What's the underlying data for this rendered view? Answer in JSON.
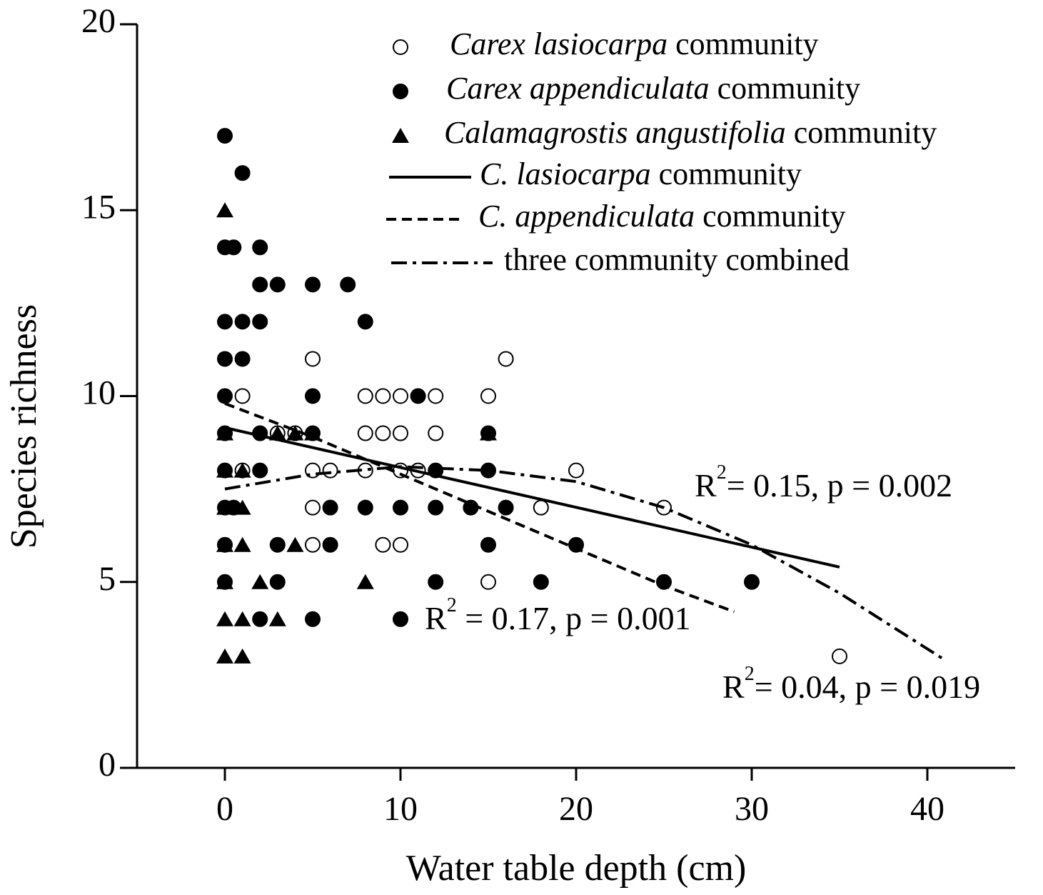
{
  "chart_data": {
    "type": "scatter",
    "x_label": "Water table depth (cm)",
    "y_label": "Species richness",
    "xlim": [
      -5,
      45
    ],
    "xticks": [
      0,
      10,
      20,
      30,
      40
    ],
    "ylim": [
      0,
      20
    ],
    "yticks": [
      0,
      5,
      10,
      15,
      20
    ],
    "series": [
      {
        "name": "Carex lasiocarpa community",
        "marker": "open-circle",
        "color": "#000000",
        "x": [
          1,
          3,
          4,
          5,
          5,
          5,
          5,
          6,
          8,
          8,
          8,
          9,
          9,
          9,
          10,
          10,
          10,
          10,
          11,
          12,
          12,
          15,
          15,
          16,
          18,
          20,
          25,
          35,
          1
        ],
        "values": [
          10,
          9,
          9,
          11,
          8,
          7,
          6,
          8,
          10,
          9,
          8,
          10,
          9,
          6,
          10,
          9,
          8,
          6,
          8,
          10,
          9,
          10,
          5,
          11,
          7,
          8,
          7,
          3,
          8
        ]
      },
      {
        "name": "Carex appendiculata community",
        "marker": "filled-circle",
        "color": "#000000",
        "x": [
          0,
          1,
          0,
          0.5,
          2,
          0,
          1,
          2,
          0,
          1,
          2,
          3,
          5,
          7,
          8,
          0,
          5,
          11,
          0,
          2,
          5,
          15,
          0,
          2,
          12,
          15,
          0,
          0.5,
          6,
          8,
          10,
          12,
          14,
          16,
          0,
          3,
          6,
          15,
          20,
          0,
          3,
          12,
          18,
          25,
          30,
          2,
          5,
          10
        ],
        "values": [
          17,
          16,
          14,
          14,
          14,
          12,
          12,
          12,
          11,
          11,
          13,
          13,
          13,
          13,
          12,
          10,
          10,
          10,
          9,
          9,
          9,
          9,
          8,
          8,
          8,
          8,
          7,
          7,
          7,
          7,
          7,
          7,
          7,
          7,
          6,
          6,
          6,
          6,
          6,
          5,
          5,
          5,
          5,
          5,
          5,
          4,
          4,
          4
        ]
      },
      {
        "name": "Calamagrostis angustifolia community",
        "marker": "triangle",
        "color": "#000000",
        "x": [
          0,
          0,
          1,
          0,
          0,
          1,
          0,
          1,
          4,
          0,
          2,
          8,
          0,
          1,
          3,
          0,
          1,
          3,
          4,
          5,
          15
        ],
        "values": [
          15,
          9,
          8,
          8,
          7,
          7,
          6,
          6,
          6,
          5,
          5,
          5,
          4,
          4,
          4,
          3,
          3,
          9,
          9,
          9,
          9
        ]
      },
      {
        "name": "C. lasiocarpa community",
        "line": "solid",
        "color": "#000000",
        "x": [
          0,
          35
        ],
        "values": [
          9.15,
          5.4
        ]
      },
      {
        "name": "C. appendiculata community",
        "line": "dashed",
        "color": "#000000",
        "x": [
          0,
          5,
          10,
          15,
          20,
          25,
          29
        ],
        "values": [
          9.8,
          8.9,
          7.9,
          6.9,
          5.9,
          4.9,
          4.2
        ]
      },
      {
        "name": "three community combined",
        "line": "dashdot",
        "color": "#000000",
        "x": [
          0,
          5,
          10,
          15,
          20,
          25,
          30,
          35,
          41
        ],
        "values": [
          7.5,
          7.9,
          8.1,
          8.0,
          7.7,
          7.0,
          6.0,
          4.7,
          2.9
        ]
      }
    ],
    "annotations": [
      {
        "prefix": "R",
        "sup": "2",
        "text": "= 0.15, p = 0.002"
      },
      {
        "prefix": "R",
        "sup": "2",
        "text": " = 0.17, p = 0.001"
      },
      {
        "prefix": "R",
        "sup": "2",
        "text": "= 0.04, p = 0.019"
      }
    ]
  }
}
